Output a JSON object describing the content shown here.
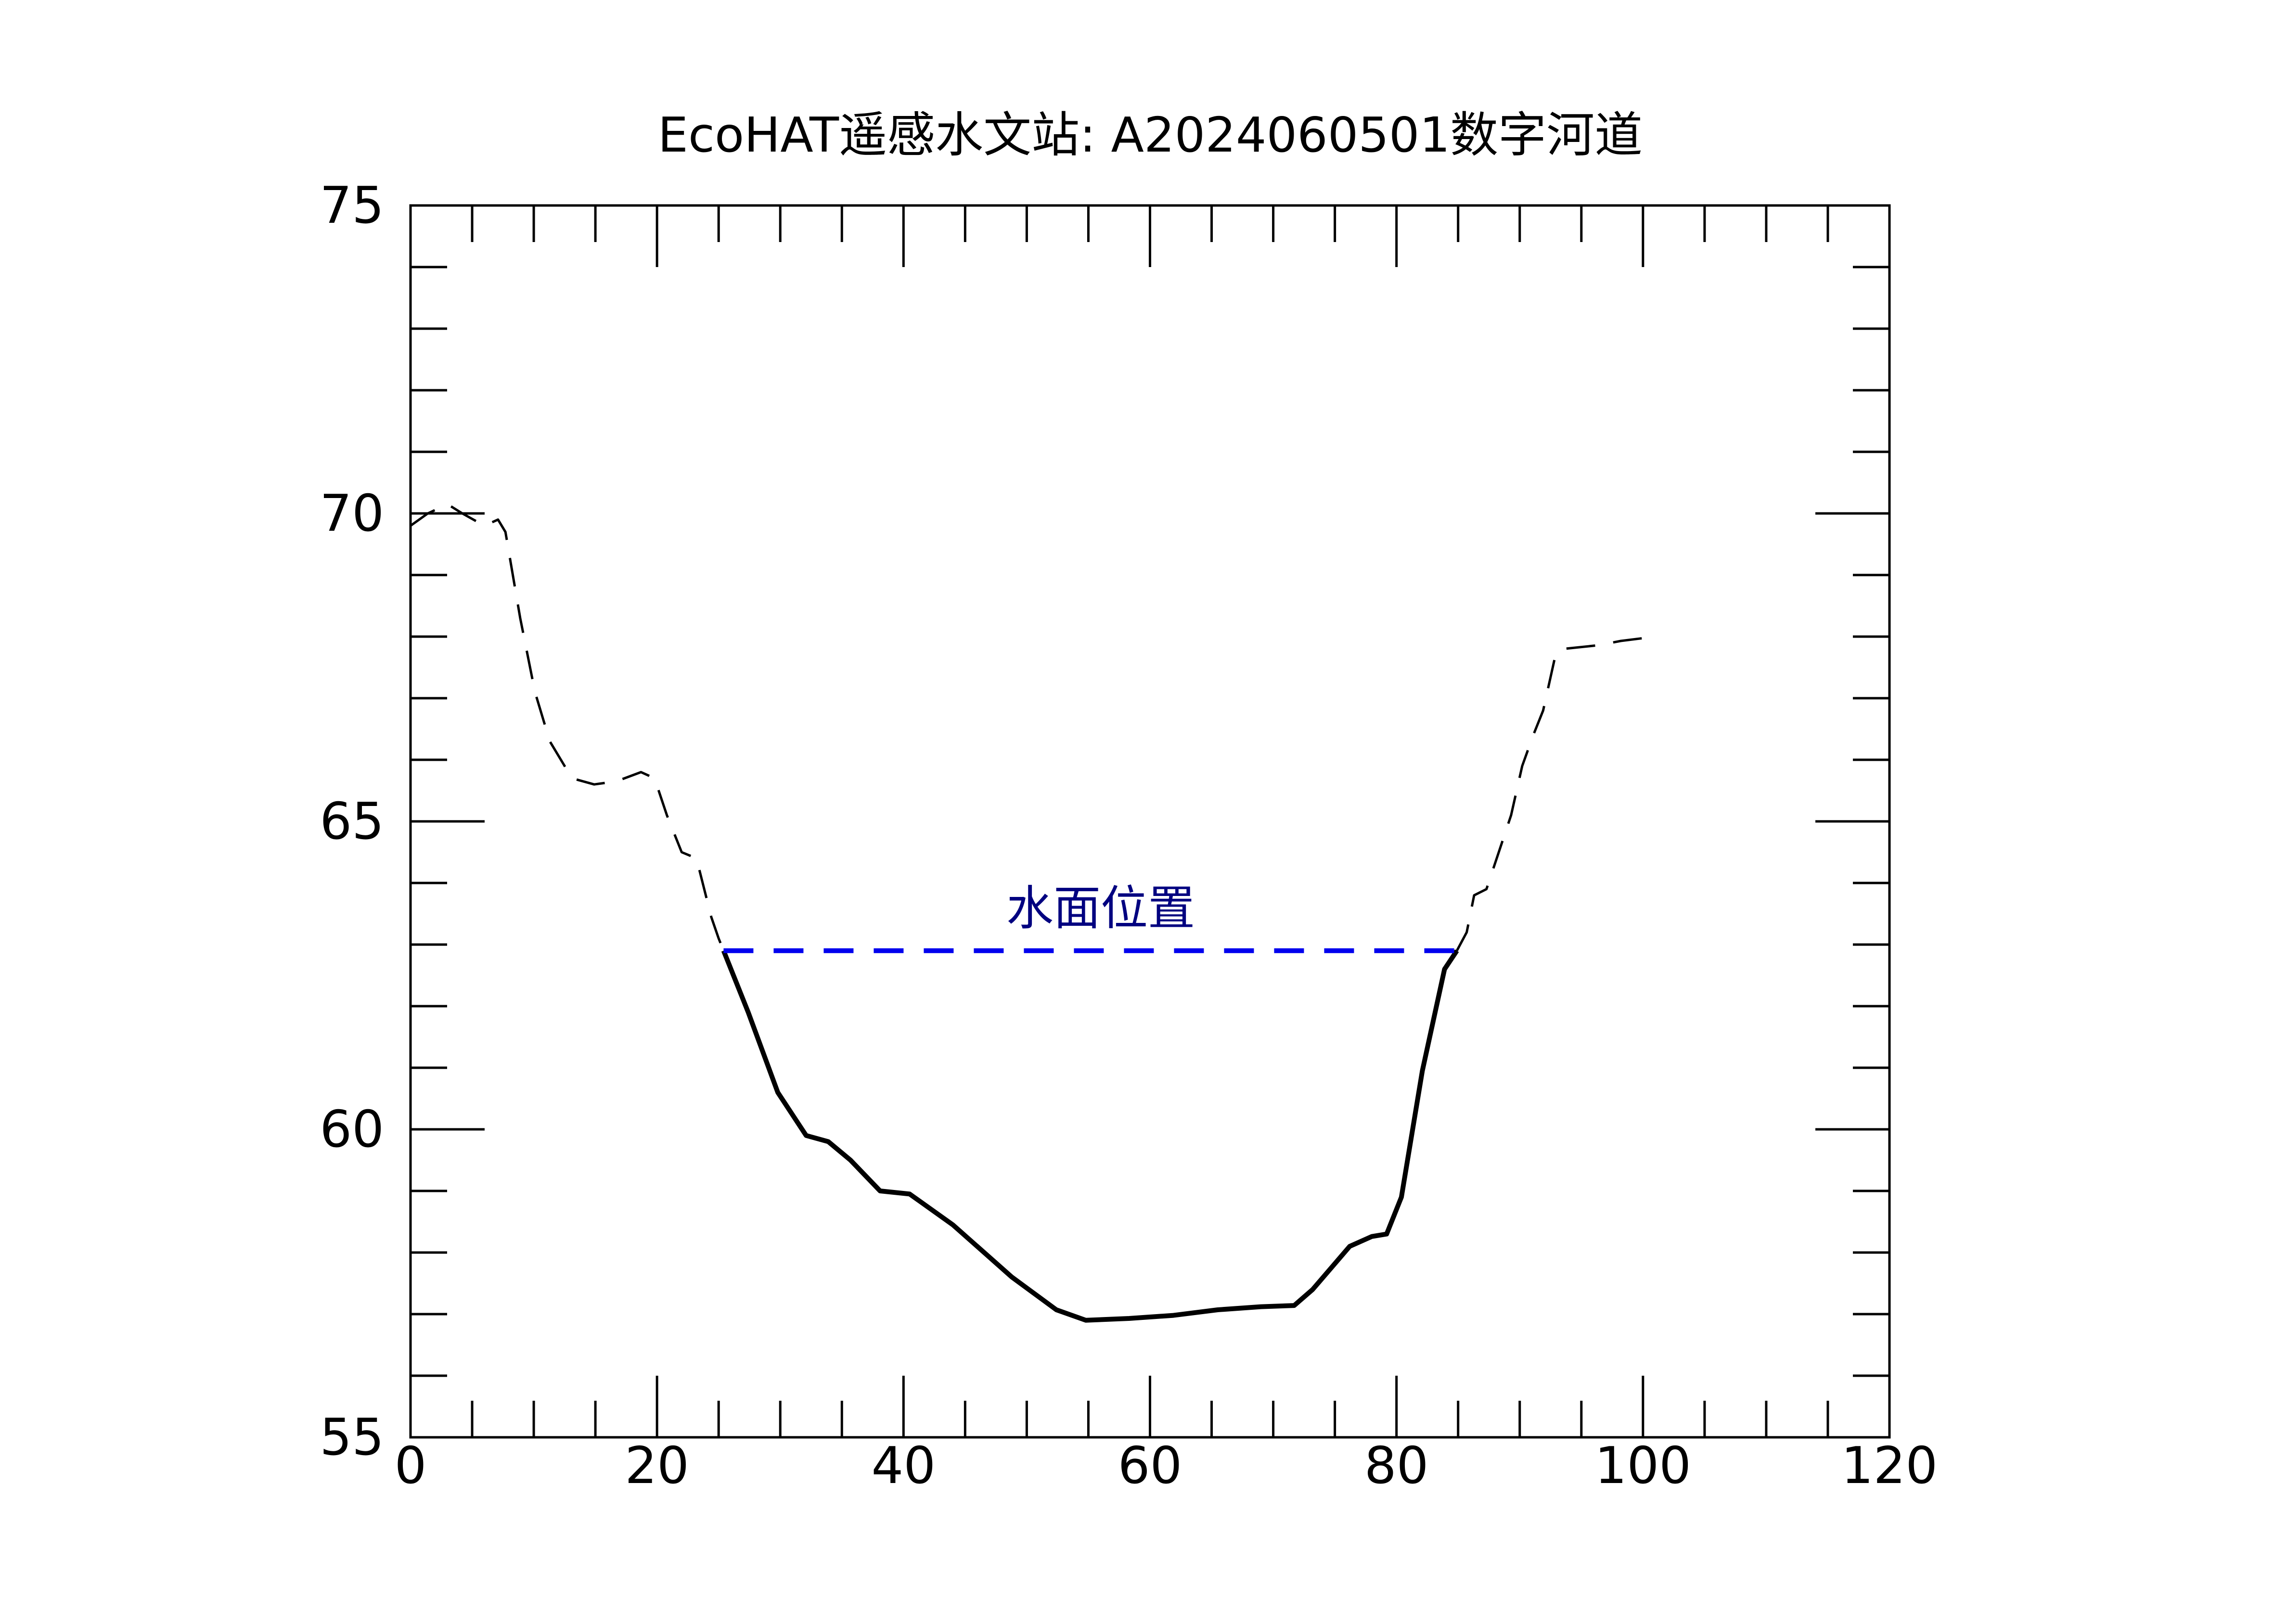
{
  "chart_data": {
    "type": "line",
    "title": "EcoHAT遥感水文站: A2024060501数字河道",
    "xlabel": "",
    "ylabel": "",
    "xlim": [
      0,
      120
    ],
    "ylim": [
      55,
      75
    ],
    "x_ticks": [
      0,
      20,
      40,
      60,
      80,
      100,
      120
    ],
    "y_ticks": [
      55,
      60,
      65,
      70,
      75
    ],
    "x_minor_step": 5,
    "y_minor_step": 1,
    "grid": false,
    "water_level": {
      "label": "水面位置",
      "y": 62.9,
      "x_range": [
        25.4,
        84.9
      ],
      "color": "#0000ee",
      "label_color": "#000080"
    },
    "series": [
      {
        "name": "left-bank-above-water",
        "style": "dashed",
        "color": "#000000",
        "x": [
          0,
          1.4,
          3,
          4.2,
          6,
          7.1,
          7.7,
          8.9,
          10.1,
          11.3,
          13.1,
          14.9,
          16.7,
          18.7,
          19.8,
          20.8,
          22,
          23.2,
          24.4,
          25,
          25.4
        ],
        "y": [
          69.8,
          70.0,
          70.15,
          70.0,
          69.8,
          69.9,
          69.7,
          68.3,
          67.1,
          66.3,
          65.7,
          65.6,
          65.65,
          65.8,
          65.7,
          65.1,
          64.5,
          64.4,
          63.45,
          63.1,
          62.9
        ]
      },
      {
        "name": "channel-underwater",
        "style": "solid",
        "color": "#000000",
        "x": [
          25.4,
          27.4,
          29.8,
          32.1,
          33.9,
          35.7,
          38.1,
          40.5,
          44,
          48.8,
          52.4,
          54.8,
          58.3,
          61.9,
          65.5,
          69,
          71.7,
          73.2,
          76.2,
          78,
          79.2,
          80.4,
          82.1,
          83.9,
          84.9
        ],
        "y": [
          62.9,
          61.9,
          60.6,
          59.9,
          59.8,
          59.5,
          59.0,
          58.95,
          58.45,
          57.6,
          57.07,
          56.9,
          56.93,
          56.98,
          57.07,
          57.12,
          57.14,
          57.4,
          58.1,
          58.26,
          58.3,
          58.9,
          60.95,
          62.6,
          62.9
        ]
      },
      {
        "name": "right-bank-above-water",
        "style": "dashed",
        "color": "#000000",
        "x": [
          84.9,
          85.7,
          86.3,
          87.3,
          88.3,
          89.3,
          90.2,
          91.1,
          91.9,
          92.9,
          93.5,
          96.4,
          98.2,
          100.2
        ],
        "y": [
          62.9,
          63.2,
          63.8,
          63.9,
          64.5,
          65.1,
          65.9,
          66.4,
          66.8,
          67.7,
          67.8,
          67.86,
          67.93,
          67.98
        ]
      }
    ]
  }
}
